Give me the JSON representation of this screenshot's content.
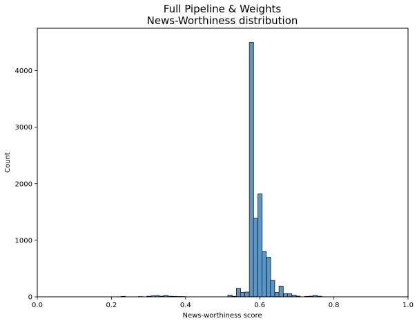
{
  "chart_data": {
    "type": "bar",
    "title": "Full Pipeline & Weights",
    "subtitle": "News-Worthiness distribution",
    "xlabel": "News-worthiness score",
    "ylabel": "Count",
    "xlim": [
      0,
      1.0
    ],
    "ylim": [
      0,
      4750
    ],
    "grid": false,
    "xticks": [
      0,
      0.2,
      0.4,
      0.6,
      0.8,
      1.0
    ],
    "xtick_labels": [
      "0.0",
      "0.2",
      "0.4",
      "0.6",
      "0.8",
      "1.0"
    ],
    "yticks": [
      0,
      1000,
      2000,
      3000,
      4000
    ],
    "ytick_labels": [
      "0",
      "1000",
      "2000",
      "3000",
      "4000"
    ],
    "bar_color": "#5a95c4",
    "bar_edge_color": "#1a1a1a",
    "bin_width": 0.0115,
    "bins": [
      {
        "x": 0.226,
        "count": 8
      },
      {
        "x": 0.272,
        "count": 5
      },
      {
        "x": 0.295,
        "count": 10
      },
      {
        "x": 0.307,
        "count": 18
      },
      {
        "x": 0.318,
        "count": 22
      },
      {
        "x": 0.33,
        "count": 12
      },
      {
        "x": 0.341,
        "count": 25
      },
      {
        "x": 0.353,
        "count": 10
      },
      {
        "x": 0.364,
        "count": 8
      },
      {
        "x": 0.376,
        "count": 6
      },
      {
        "x": 0.387,
        "count": 5
      },
      {
        "x": 0.514,
        "count": 30
      },
      {
        "x": 0.525,
        "count": 10
      },
      {
        "x": 0.537,
        "count": 150
      },
      {
        "x": 0.548,
        "count": 80
      },
      {
        "x": 0.56,
        "count": 85
      },
      {
        "x": 0.572,
        "count": 4500
      },
      {
        "x": 0.583,
        "count": 1390
      },
      {
        "x": 0.595,
        "count": 1820
      },
      {
        "x": 0.606,
        "count": 800
      },
      {
        "x": 0.618,
        "count": 700
      },
      {
        "x": 0.629,
        "count": 290
      },
      {
        "x": 0.641,
        "count": 80
      },
      {
        "x": 0.652,
        "count": 190
      },
      {
        "x": 0.664,
        "count": 55
      },
      {
        "x": 0.675,
        "count": 55
      },
      {
        "x": 0.687,
        "count": 30
      },
      {
        "x": 0.698,
        "count": 12
      },
      {
        "x": 0.721,
        "count": 8
      },
      {
        "x": 0.733,
        "count": 12
      },
      {
        "x": 0.744,
        "count": 25
      },
      {
        "x": 0.756,
        "count": 10
      }
    ]
  }
}
